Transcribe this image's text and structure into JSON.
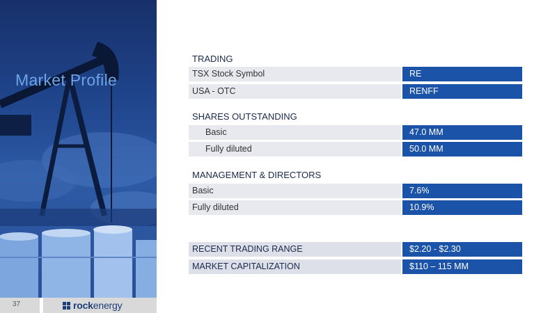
{
  "slide": {
    "title": "Market Profile",
    "page_number": "37"
  },
  "logo": {
    "part1": "rock",
    "part2": "energy"
  },
  "trading": {
    "heading": "TRADING",
    "rows": [
      {
        "label": "TSX Stock Symbol",
        "value": "RE"
      },
      {
        "label": "USA - OTC",
        "value": "RENFF"
      }
    ]
  },
  "shares": {
    "heading": "SHARES OUTSTANDING",
    "rows": [
      {
        "label": "Basic",
        "value": "47.0 MM"
      },
      {
        "label": "Fully diluted",
        "value": "50.0 MM"
      }
    ]
  },
  "management": {
    "heading": "MANAGEMENT & DIRECTORS",
    "rows": [
      {
        "label": "Basic",
        "value": "7.6%"
      },
      {
        "label": "Fully diluted",
        "value": "10.9%"
      }
    ]
  },
  "summary": {
    "rows": [
      {
        "label": "RECENT TRADING RANGE",
        "value": "$2.20 - $2.30"
      },
      {
        "label": "MARKET CAPITALIZATION",
        "value": "$110 – 115 MM"
      }
    ]
  },
  "colors": {
    "accent": "#1b53a8",
    "title": "#6ea4e6",
    "label_bg": "#e7e9ee"
  },
  "icons": [
    "pumpjack-image",
    "logo-mark-icon"
  ]
}
